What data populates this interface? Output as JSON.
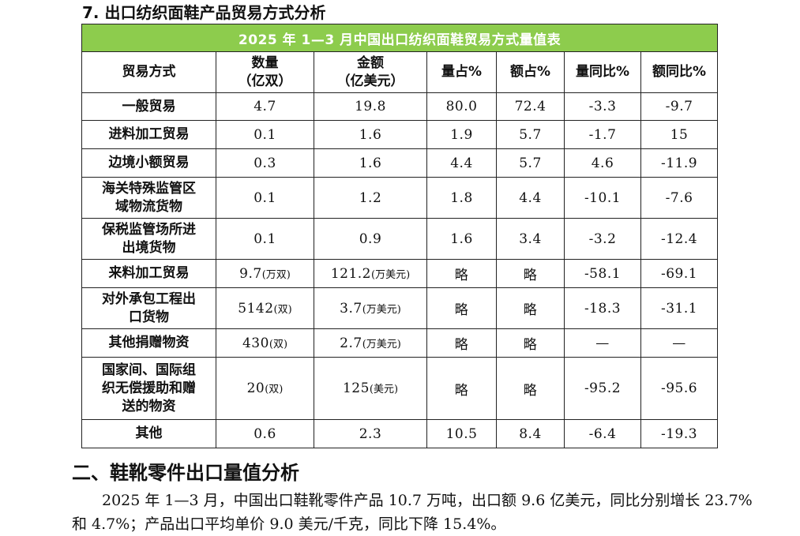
{
  "section_heading": "7. 出口纺织面鞋产品贸易方式分析",
  "table": {
    "title": "2025 年 1—3 月中国出口纺织面鞋贸易方式量值表",
    "headers": [
      {
        "line1": "贸易方式",
        "line2": ""
      },
      {
        "line1": "数量",
        "line2": "（亿双）"
      },
      {
        "line1": "金额",
        "line2": "（亿美元）"
      },
      {
        "line1": "量占%",
        "line2": ""
      },
      {
        "line1": "额占%",
        "line2": ""
      },
      {
        "line1": "量同比%",
        "line2": ""
      },
      {
        "line1": "额同比%",
        "line2": ""
      }
    ],
    "rows": [
      {
        "mode": [
          "一般贸易"
        ],
        "qty": "4.7",
        "qty_unit": "",
        "amt": "19.8",
        "amt_unit": "",
        "qty_share": "80.0",
        "amt_share": "72.4",
        "qty_yoy": "-3.3",
        "amt_yoy": "-9.7"
      },
      {
        "mode": [
          "进料加工贸易"
        ],
        "qty": "0.1",
        "qty_unit": "",
        "amt": "1.6",
        "amt_unit": "",
        "qty_share": "1.9",
        "amt_share": "5.7",
        "qty_yoy": "-1.7",
        "amt_yoy": "15"
      },
      {
        "mode": [
          "边境小额贸易"
        ],
        "qty": "0.3",
        "qty_unit": "",
        "amt": "1.6",
        "amt_unit": "",
        "qty_share": "4.4",
        "amt_share": "5.7",
        "qty_yoy": "4.6",
        "amt_yoy": "-11.9"
      },
      {
        "mode": [
          "海关特殊监管区",
          "域物流货物"
        ],
        "qty": "0.1",
        "qty_unit": "",
        "amt": "1.2",
        "amt_unit": "",
        "qty_share": "1.8",
        "amt_share": "4.4",
        "qty_yoy": "-10.1",
        "amt_yoy": "-7.6"
      },
      {
        "mode": [
          "保税监管场所进",
          "出境货物"
        ],
        "qty": "0.1",
        "qty_unit": "",
        "amt": "0.9",
        "amt_unit": "",
        "qty_share": "1.6",
        "amt_share": "3.4",
        "qty_yoy": "-3.2",
        "amt_yoy": "-12.4"
      },
      {
        "mode": [
          "来料加工贸易"
        ],
        "qty": "9.7",
        "qty_unit": "(万双)",
        "amt": "121.2",
        "amt_unit": "(万美元)",
        "qty_share": "略",
        "amt_share": "略",
        "qty_yoy": "-58.1",
        "amt_yoy": "-69.1"
      },
      {
        "mode": [
          "对外承包工程出",
          "口货物"
        ],
        "qty": "5142",
        "qty_unit": "(双)",
        "amt": "3.7",
        "amt_unit": "(万美元)",
        "qty_share": "略",
        "amt_share": "略",
        "qty_yoy": "-18.3",
        "amt_yoy": "-31.1"
      },
      {
        "mode": [
          "其他捐赠物资"
        ],
        "qty": "430",
        "qty_unit": "(双)",
        "amt": "2.7",
        "amt_unit": "(万美元)",
        "qty_share": "略",
        "amt_share": "略",
        "qty_yoy": "—",
        "amt_yoy": "—"
      },
      {
        "mode": [
          "国家间、国际组",
          "织无偿援助和赠",
          "送的物资"
        ],
        "qty": "20",
        "qty_unit": "(双)",
        "amt": "125",
        "amt_unit": "(美元)",
        "qty_share": "略",
        "amt_share": "略",
        "qty_yoy": "-95.2",
        "amt_yoy": "-95.6"
      },
      {
        "mode": [
          "其他"
        ],
        "qty": "0.6",
        "qty_unit": "",
        "amt": "2.3",
        "amt_unit": "",
        "qty_share": "10.5",
        "amt_share": "8.4",
        "qty_yoy": "-6.4",
        "amt_yoy": "-19.3"
      }
    ]
  },
  "section_two_heading": "二、鞋靴零件出口量值分析",
  "paragraph": "2025 年 1—3 月，中国出口鞋靴零件产品 10.7 万吨，出口额 9.6 亿美元，同比分别增长 23.7%和 4.7%；产品出口平均单价 9.0 美元/千克，同比下降 15.4%。"
}
